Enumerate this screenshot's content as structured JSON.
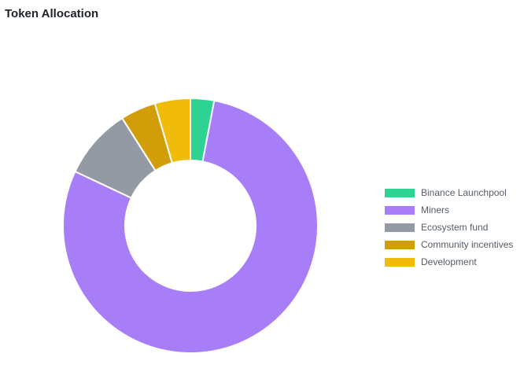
{
  "chart_data": {
    "type": "pie",
    "title": "Token Allocation",
    "donut": true,
    "categories": [
      "Binance Launchpool",
      "Miners",
      "Ecosystem fund",
      "Community incentives",
      "Development"
    ],
    "values": [
      3,
      79,
      9,
      4.5,
      4.5
    ],
    "colors": [
      "#2ed394",
      "#a77ef7",
      "#939aa4",
      "#d19e0a",
      "#f1bb0c"
    ],
    "legend_position": "right"
  }
}
